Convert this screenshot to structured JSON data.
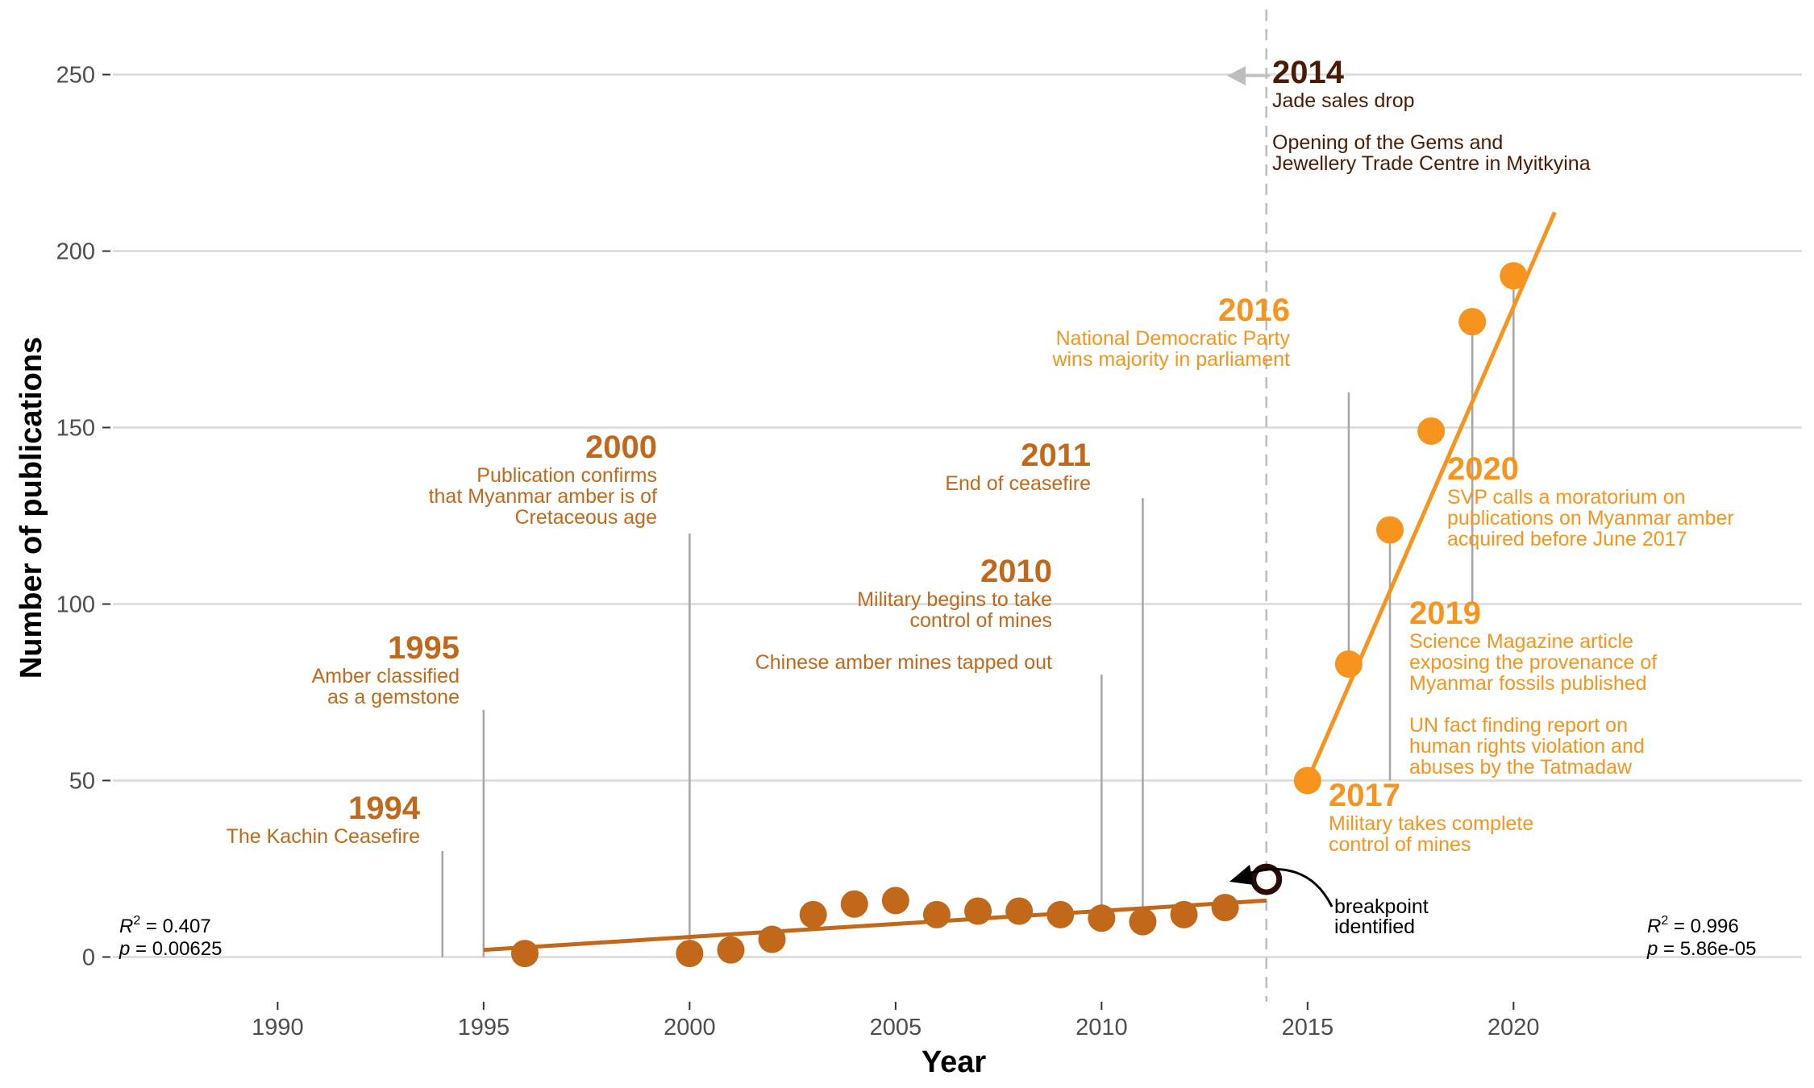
{
  "chart_data": {
    "type": "scatter",
    "xlabel": "Year",
    "ylabel": "Number of publications",
    "xlim": [
      1986,
      2027
    ],
    "ylim": [
      -12,
      262
    ],
    "x_ticks": [
      1990,
      1995,
      2000,
      2005,
      2010,
      2015,
      2020
    ],
    "y_ticks": [
      0,
      50,
      100,
      150,
      200,
      250
    ],
    "grid": "horizontal",
    "colors": {
      "early": "#c1681a",
      "late": "#f7941d",
      "breakpoint": "#2b0a0a",
      "stem": "#a6a6a6",
      "grid": "#d9d9d9",
      "dark_annotation": "#4a1c06"
    },
    "series": [
      {
        "color": "#c1681a",
        "points": [
          {
            "x": 1996,
            "y": 1
          },
          {
            "x": 2000,
            "y": 1
          },
          {
            "x": 2001,
            "y": 2
          },
          {
            "x": 2002,
            "y": 5
          },
          {
            "x": 2003,
            "y": 12
          },
          {
            "x": 2004,
            "y": 15
          },
          {
            "x": 2005,
            "y": 16
          },
          {
            "x": 2006,
            "y": 12
          },
          {
            "x": 2007,
            "y": 13
          },
          {
            "x": 2008,
            "y": 13
          },
          {
            "x": 2009,
            "y": 12
          },
          {
            "x": 2010,
            "y": 11
          },
          {
            "x": 2011,
            "y": 10
          },
          {
            "x": 2012,
            "y": 12
          },
          {
            "x": 2013,
            "y": 14
          }
        ],
        "fit": {
          "x0": 1995,
          "y0": 2,
          "x1": 2014,
          "y1": 16
        },
        "stats": {
          "r2_label": "R",
          "r2_sup": "2",
          "r2_value": " = 0.407",
          "p_label": "p",
          "p_value": " = 0.00625"
        }
      },
      {
        "color": "#f7941d",
        "points": [
          {
            "x": 2015,
            "y": 50
          },
          {
            "x": 2016,
            "y": 83
          },
          {
            "x": 2017,
            "y": 121
          },
          {
            "x": 2018,
            "y": 149
          },
          {
            "x": 2019,
            "y": 180
          },
          {
            "x": 2020,
            "y": 193
          }
        ],
        "fit": {
          "x0": 2015,
          "y0": 50,
          "x1": 2021,
          "y1": 211
        },
        "stats": {
          "r2_label": "R",
          "r2_sup": "2",
          "r2_value": " = 0.996",
          "p_label": "p",
          "p_value": " = 5.86e-05"
        }
      }
    ],
    "breakpoint": {
      "x": 2014,
      "y": 22,
      "label_lines": [
        "breakpoint",
        "identified"
      ]
    },
    "annotations": [
      {
        "year": "1994",
        "lines": [
          "The Kachin Ceasefire"
        ],
        "color": "#c1681a",
        "stem_x": 1994,
        "stem_top": 30,
        "stem_bottom": 0
      },
      {
        "year": "1995",
        "lines": [
          "Amber classified",
          "as a gemstone"
        ],
        "color": "#c1681a",
        "stem_x": 1995,
        "stem_top": 70,
        "stem_bottom": 0
      },
      {
        "year": "2000",
        "lines": [
          "Publication confirms",
          "that Myanmar amber is of",
          "Cretaceous age"
        ],
        "color": "#c1681a",
        "stem_x": 2000,
        "stem_top": 120,
        "stem_bottom": 4
      },
      {
        "year": "2010",
        "lines": [
          "Military begins to take",
          "control of mines",
          "",
          "Chinese amber mines tapped out"
        ],
        "color": "#c1681a",
        "stem_x": 2010,
        "stem_top": 80,
        "stem_bottom": 14
      },
      {
        "year": "2011",
        "lines": [
          "End of ceasefire"
        ],
        "color": "#c1681a",
        "stem_x": 2011,
        "stem_top": 130,
        "stem_bottom": 13
      },
      {
        "year": "2014",
        "lines": [
          "Jade sales drop",
          "",
          "Opening of the Gems and",
          "Jewellery Trade Centre in Myitkyina"
        ],
        "color": "#4a1c06"
      },
      {
        "year": "2016",
        "lines": [
          "National Democratic Party",
          "wins majority in parliament"
        ],
        "color": "#f7941d",
        "stem_x": 2016,
        "stem_top": 160,
        "stem_bottom": 86
      },
      {
        "year": "2017",
        "lines": [
          "Military takes complete",
          "control of mines"
        ],
        "color": "#f7941d",
        "stem_x": 2017,
        "stem_top": 50,
        "stem_bottom": 118
      },
      {
        "year": "2019",
        "lines": [
          "Science Magazine article",
          "exposing the provenance of",
          "Myanmar fossils published",
          "",
          "UN fact finding report on",
          "human rights violation and",
          "abuses by the Tatmadaw"
        ],
        "color": "#f7941d",
        "stem_x": 2019,
        "stem_top": 100,
        "stem_bottom": 177
      },
      {
        "year": "2020",
        "lines": [
          "SVP calls a moratorium on",
          "publications on Myanmar amber",
          "acquired before June 2017"
        ],
        "color": "#f7941d",
        "stem_x": 2020,
        "stem_top": 140,
        "stem_bottom": 190
      }
    ]
  }
}
